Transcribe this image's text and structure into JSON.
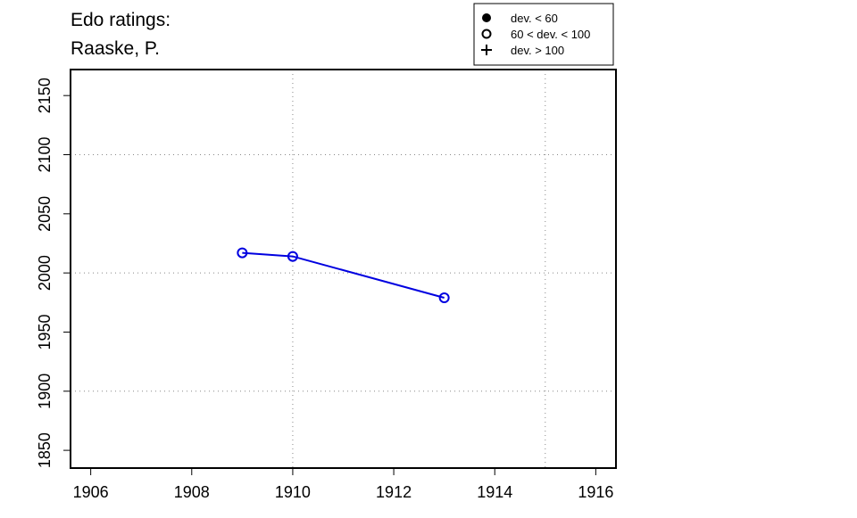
{
  "chart_data": {
    "type": "line",
    "title": [
      "Edo ratings:",
      "Raaske, P."
    ],
    "x": [
      1909,
      1910,
      1913
    ],
    "series": [
      {
        "color": "#0000e0",
        "marker": "open",
        "values": [
          2017,
          2014,
          1979
        ]
      }
    ],
    "xlim": [
      1905.6,
      1916.4
    ],
    "ylim": [
      1835,
      2172
    ],
    "xticks": [
      1906,
      1908,
      1910,
      1912,
      1914,
      1916
    ],
    "yticks": [
      1850,
      1900,
      1950,
      2000,
      2050,
      2100,
      2150
    ],
    "xgrid": [
      1910,
      1915
    ],
    "ygrid": [
      1900,
      2000,
      2100
    ],
    "legend": [
      {
        "label": "dev. < 60",
        "marker": "filled"
      },
      {
        "label": "60 < dev. < 100",
        "marker": "open"
      },
      {
        "label": "dev. > 100",
        "marker": "plus"
      }
    ]
  }
}
